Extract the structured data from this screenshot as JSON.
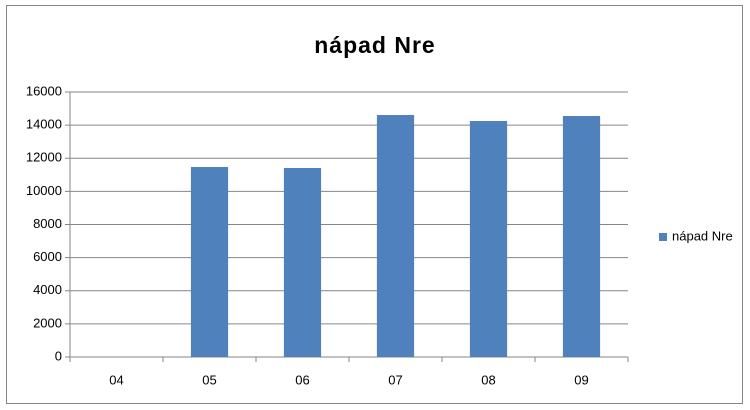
{
  "chart_data": {
    "type": "bar",
    "title": "nápad Nre",
    "categories": [
      "04",
      "05",
      "06",
      "07",
      "08",
      "09"
    ],
    "series": [
      {
        "name": "nápad Nre",
        "color": "#4f81bd",
        "values": [
          0,
          11470,
          11410,
          14610,
          14250,
          14550
        ]
      }
    ],
    "ylim": [
      0,
      16000
    ],
    "yticks": [
      0,
      2000,
      4000,
      6000,
      8000,
      10000,
      12000,
      14000,
      16000
    ],
    "grid": true,
    "legend": "right"
  }
}
